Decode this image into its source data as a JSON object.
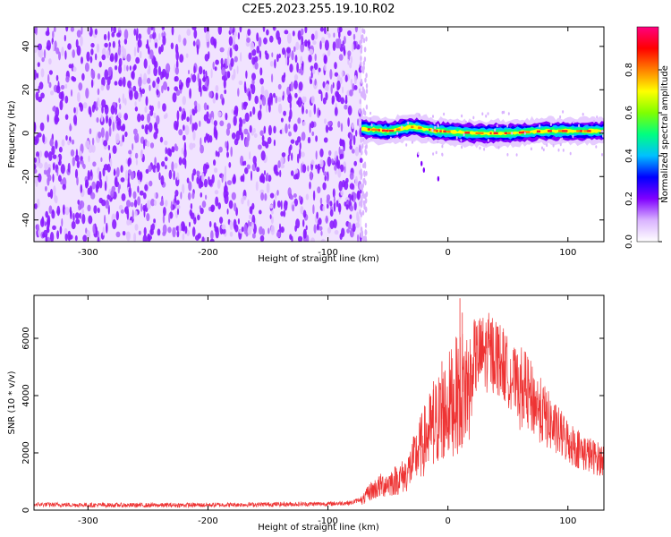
{
  "title": "C2E5.2023.255.19.10.R02",
  "chart_data": [
    {
      "type": "heatmap",
      "xlabel": "Height of straight line (km)",
      "ylabel": "Frequency (Hz)",
      "xlim": [
        -345,
        130
      ],
      "ylim": [
        -50,
        49
      ],
      "xticks": [
        -300,
        -200,
        -100,
        0,
        100
      ],
      "yticks": [
        -40,
        -20,
        0,
        20,
        40
      ],
      "noise_region_x": [
        -345,
        -72
      ],
      "signal_region_x": [
        -72,
        130
      ],
      "signal_center_hz": [
        {
          "x": -72,
          "y": 2
        },
        {
          "x": -50,
          "y": 1
        },
        {
          "x": -30,
          "y": 3
        },
        {
          "x": -10,
          "y": 1
        },
        {
          "x": 20,
          "y": 0
        },
        {
          "x": 50,
          "y": 0
        },
        {
          "x": 80,
          "y": 1
        },
        {
          "x": 110,
          "y": 1
        },
        {
          "x": 130,
          "y": 1
        }
      ],
      "colorbar": {
        "label": "Normalized spectral amplitude",
        "min": 0.0,
        "max": 1.0,
        "ticks": [
          "0.0",
          "0.2",
          "0.4",
          "0.6",
          "0.8"
        ],
        "colormap": [
          "#ffffff",
          "#d9b3ff",
          "#8000ff",
          "#0000ff",
          "#00c0ff",
          "#00ff80",
          "#80ff00",
          "#ffff00",
          "#ff8000",
          "#ff0000",
          "#ff0080"
        ]
      }
    },
    {
      "type": "line",
      "xlabel": "Height of straight line (km)",
      "ylabel": "SNR (10 * v/v)",
      "xlim": [
        -345,
        130
      ],
      "ylim": [
        0,
        7500
      ],
      "xticks": [
        -300,
        -200,
        -100,
        0,
        100
      ],
      "yticks": [
        0,
        2000,
        4000,
        6000
      ],
      "color": "#ee3333",
      "series": [
        {
          "points": [
            [
              -345,
              200
            ],
            [
              -300,
              180
            ],
            [
              -250,
              170
            ],
            [
              -200,
              180
            ],
            [
              -150,
              200
            ],
            [
              -100,
              220
            ],
            [
              -80,
              260
            ],
            [
              -72,
              400
            ],
            [
              -65,
              900
            ],
            [
              -55,
              1200
            ],
            [
              -45,
              1400
            ],
            [
              -35,
              1700
            ],
            [
              -30,
              2200
            ],
            [
              -25,
              2800
            ],
            [
              -20,
              3300
            ],
            [
              -15,
              3800
            ],
            [
              -10,
              4200
            ],
            [
              -5,
              4600
            ],
            [
              0,
              5000
            ],
            [
              5,
              5400
            ],
            [
              10,
              5700
            ],
            [
              15,
              5900
            ],
            [
              20,
              6000
            ],
            [
              25,
              6150
            ],
            [
              30,
              6250
            ],
            [
              35,
              6300
            ],
            [
              40,
              6200
            ],
            [
              45,
              5900
            ],
            [
              50,
              5500
            ],
            [
              55,
              5200
            ],
            [
              60,
              4900
            ],
            [
              65,
              4600
            ],
            [
              70,
              4300
            ],
            [
              75,
              4000
            ],
            [
              80,
              3700
            ],
            [
              85,
              3400
            ],
            [
              90,
              3100
            ],
            [
              95,
              2900
            ],
            [
              100,
              2700
            ],
            [
              105,
              2500
            ],
            [
              110,
              2350
            ],
            [
              115,
              2200
            ],
            [
              120,
              2100
            ],
            [
              125,
              2000
            ],
            [
              130,
              1950
            ]
          ]
        }
      ]
    }
  ]
}
